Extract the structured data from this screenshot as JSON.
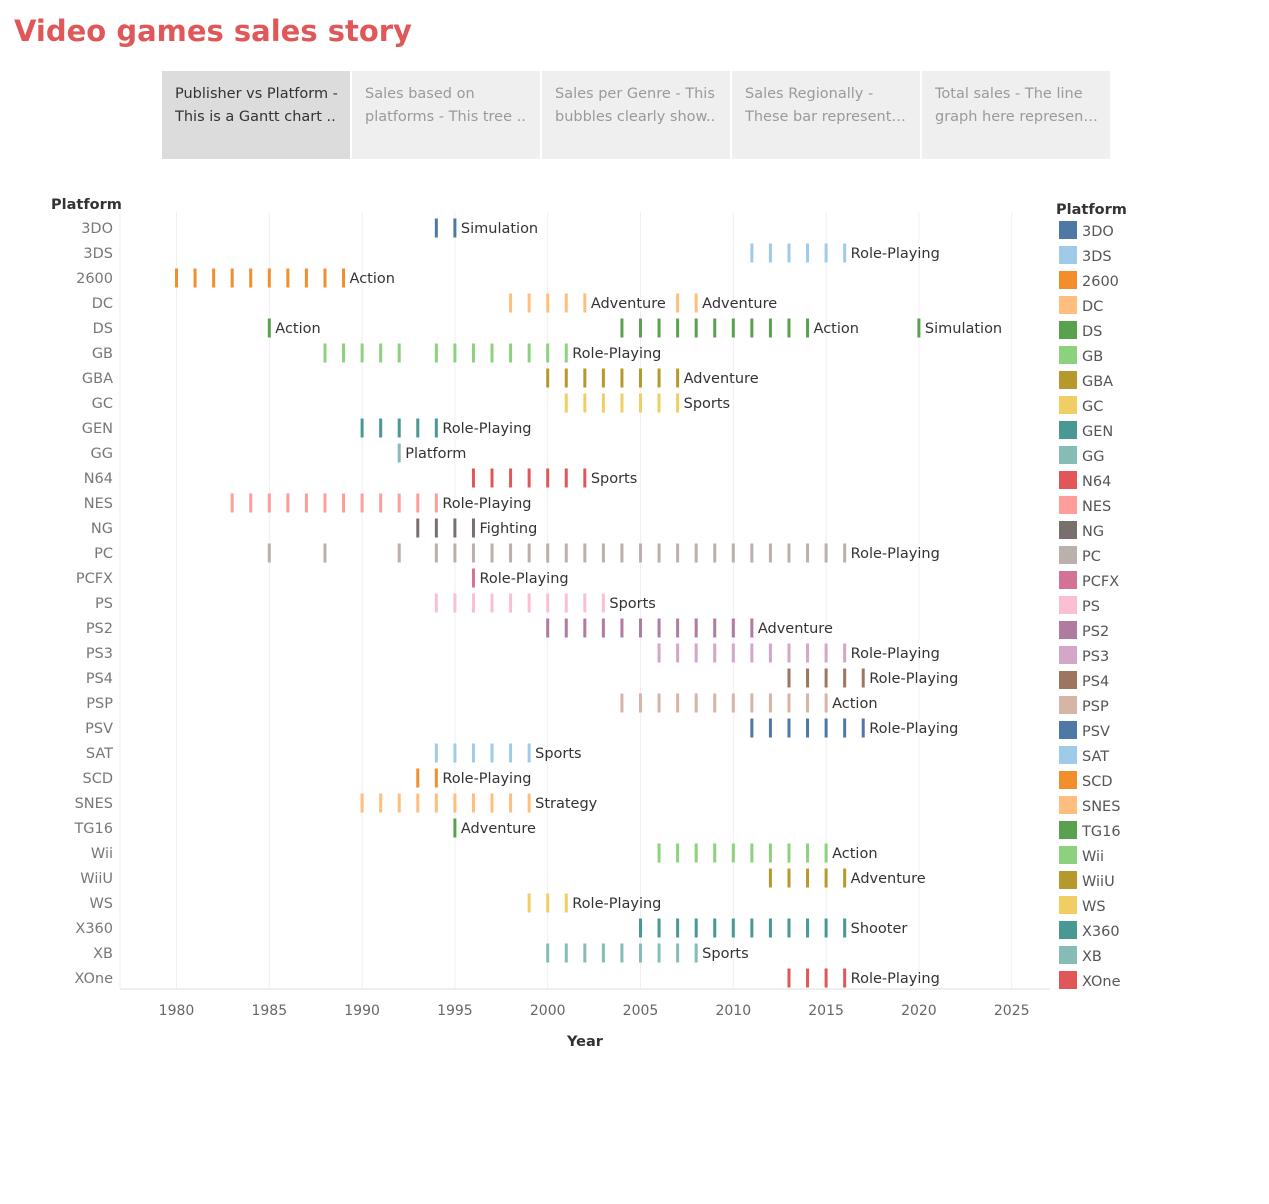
{
  "page": {
    "title": "Video games sales story"
  },
  "tabs": [
    {
      "line1": "Publisher vs Platform -",
      "line2": "This is a Gantt chart ..",
      "active": true
    },
    {
      "line1": "Sales based on",
      "line2": "platforms - This tree ..",
      "active": false
    },
    {
      "line1": "Sales per Genre - This",
      "line2": "bubbles clearly show..",
      "active": false
    },
    {
      "line1": "Sales Regionally -",
      "line2": "These bar represent t..",
      "active": false
    },
    {
      "line1": "Total sales - The line",
      "line2": "graph here represent..",
      "active": false
    }
  ],
  "chart_data": {
    "type": "gantt",
    "row_header": "Platform",
    "xlabel": "Year",
    "xlim": [
      1977,
      2027
    ],
    "xticks": [
      1980,
      1985,
      1990,
      1995,
      2000,
      2005,
      2010,
      2015,
      2020,
      2025
    ],
    "legend": {
      "title": "Platform",
      "position": "right"
    },
    "rows": [
      {
        "platform": "3DO",
        "color": "#4e79a7",
        "years": [
          1994,
          1995
        ],
        "labels": [
          {
            "year": 1995,
            "text": "Simulation"
          }
        ]
      },
      {
        "platform": "3DS",
        "color": "#a0cbe8",
        "years": [
          2011,
          2012,
          2013,
          2014,
          2015,
          2016
        ],
        "labels": [
          {
            "year": 2016,
            "text": "Role-Playing"
          }
        ]
      },
      {
        "platform": "2600",
        "color": "#f28e2b",
        "years": [
          1980,
          1981,
          1982,
          1983,
          1984,
          1985,
          1986,
          1987,
          1988,
          1989
        ],
        "labels": [
          {
            "year": 1989,
            "text": "Action"
          }
        ]
      },
      {
        "platform": "DC",
        "color": "#ffbe7d",
        "years": [
          1998,
          1999,
          2000,
          2001,
          2002,
          2007,
          2008
        ],
        "labels": [
          {
            "year": 2002,
            "text": "Adventure"
          },
          {
            "year": 2008,
            "text": "Adventure"
          }
        ]
      },
      {
        "platform": "DS",
        "color": "#59a14f",
        "years": [
          1985,
          2004,
          2005,
          2006,
          2007,
          2008,
          2009,
          2010,
          2011,
          2012,
          2013,
          2014,
          2020
        ],
        "labels": [
          {
            "year": 1985,
            "text": "Action"
          },
          {
            "year": 2014,
            "text": "Action"
          },
          {
            "year": 2020,
            "text": "Simulation"
          }
        ]
      },
      {
        "platform": "GB",
        "color": "#8cd17d",
        "years": [
          1988,
          1989,
          1990,
          1991,
          1992,
          1994,
          1995,
          1996,
          1997,
          1998,
          1999,
          2000,
          2001
        ],
        "labels": [
          {
            "year": 2001,
            "text": "Role-Playing"
          }
        ]
      },
      {
        "platform": "GBA",
        "color": "#b6992d",
        "years": [
          2000,
          2001,
          2002,
          2003,
          2004,
          2005,
          2006,
          2007
        ],
        "labels": [
          {
            "year": 2007,
            "text": "Adventure"
          }
        ]
      },
      {
        "platform": "GC",
        "color": "#f1ce63",
        "years": [
          2001,
          2002,
          2003,
          2004,
          2005,
          2006,
          2007
        ],
        "labels": [
          {
            "year": 2007,
            "text": "Sports"
          }
        ]
      },
      {
        "platform": "GEN",
        "color": "#499894",
        "years": [
          1990,
          1991,
          1992,
          1993,
          1994
        ],
        "labels": [
          {
            "year": 1994,
            "text": "Role-Playing"
          }
        ]
      },
      {
        "platform": "GG",
        "color": "#86bcb6",
        "years": [
          1992
        ],
        "labels": [
          {
            "year": 1992,
            "text": "Platform"
          }
        ]
      },
      {
        "platform": "N64",
        "color": "#e15759",
        "years": [
          1996,
          1997,
          1998,
          1999,
          2000,
          2001,
          2002
        ],
        "labels": [
          {
            "year": 2002,
            "text": "Sports"
          }
        ]
      },
      {
        "platform": "NES",
        "color": "#ff9d9a",
        "years": [
          1983,
          1984,
          1985,
          1986,
          1987,
          1988,
          1989,
          1990,
          1991,
          1992,
          1993,
          1994
        ],
        "labels": [
          {
            "year": 1994,
            "text": "Role-Playing"
          }
        ]
      },
      {
        "platform": "NG",
        "color": "#79706e",
        "years": [
          1993,
          1994,
          1995,
          1996
        ],
        "labels": [
          {
            "year": 1996,
            "text": "Fighting"
          }
        ]
      },
      {
        "platform": "PC",
        "color": "#bab0ac",
        "years": [
          1985,
          1988,
          1992,
          1994,
          1995,
          1996,
          1997,
          1998,
          1999,
          2000,
          2001,
          2002,
          2003,
          2004,
          2005,
          2006,
          2007,
          2008,
          2009,
          2010,
          2011,
          2012,
          2013,
          2014,
          2015,
          2016
        ],
        "labels": [
          {
            "year": 2016,
            "text": "Role-Playing"
          }
        ]
      },
      {
        "platform": "PCFX",
        "color": "#d37295",
        "years": [
          1996
        ],
        "labels": [
          {
            "year": 1996,
            "text": "Role-Playing"
          }
        ]
      },
      {
        "platform": "PS",
        "color": "#fabfd2",
        "years": [
          1994,
          1995,
          1996,
          1997,
          1998,
          1999,
          2000,
          2001,
          2002,
          2003
        ],
        "labels": [
          {
            "year": 2003,
            "text": "Sports"
          }
        ]
      },
      {
        "platform": "PS2",
        "color": "#b07aa1",
        "years": [
          2000,
          2001,
          2002,
          2003,
          2004,
          2005,
          2006,
          2007,
          2008,
          2009,
          2010,
          2011
        ],
        "labels": [
          {
            "year": 2011,
            "text": "Adventure"
          }
        ]
      },
      {
        "platform": "PS3",
        "color": "#d4a6c8",
        "years": [
          2006,
          2007,
          2008,
          2009,
          2010,
          2011,
          2012,
          2013,
          2014,
          2015,
          2016
        ],
        "labels": [
          {
            "year": 2016,
            "text": "Role-Playing"
          }
        ]
      },
      {
        "platform": "PS4",
        "color": "#9d7660",
        "years": [
          2013,
          2014,
          2015,
          2016,
          2017
        ],
        "labels": [
          {
            "year": 2017,
            "text": "Role-Playing"
          }
        ]
      },
      {
        "platform": "PSP",
        "color": "#d7b5a6",
        "years": [
          2004,
          2005,
          2006,
          2007,
          2008,
          2009,
          2010,
          2011,
          2012,
          2013,
          2014,
          2015
        ],
        "labels": [
          {
            "year": 2015,
            "text": "Action"
          }
        ]
      },
      {
        "platform": "PSV",
        "color": "#4e79a7",
        "years": [
          2011,
          2012,
          2013,
          2014,
          2015,
          2016,
          2017
        ],
        "labels": [
          {
            "year": 2017,
            "text": "Role-Playing"
          }
        ]
      },
      {
        "platform": "SAT",
        "color": "#a0cbe8",
        "years": [
          1994,
          1995,
          1996,
          1997,
          1998,
          1999
        ],
        "labels": [
          {
            "year": 1999,
            "text": "Sports"
          }
        ]
      },
      {
        "platform": "SCD",
        "color": "#f28e2b",
        "years": [
          1993,
          1994
        ],
        "labels": [
          {
            "year": 1994,
            "text": "Role-Playing"
          }
        ]
      },
      {
        "platform": "SNES",
        "color": "#ffbe7d",
        "years": [
          1990,
          1991,
          1992,
          1993,
          1994,
          1995,
          1996,
          1997,
          1998,
          1999
        ],
        "labels": [
          {
            "year": 1999,
            "text": "Strategy"
          }
        ]
      },
      {
        "platform": "TG16",
        "color": "#59a14f",
        "years": [
          1995
        ],
        "labels": [
          {
            "year": 1995,
            "text": "Adventure"
          }
        ]
      },
      {
        "platform": "Wii",
        "color": "#8cd17d",
        "years": [
          2006,
          2007,
          2008,
          2009,
          2010,
          2011,
          2012,
          2013,
          2014,
          2015
        ],
        "labels": [
          {
            "year": 2015,
            "text": "Action"
          }
        ]
      },
      {
        "platform": "WiiU",
        "color": "#b6992d",
        "years": [
          2012,
          2013,
          2014,
          2015,
          2016
        ],
        "labels": [
          {
            "year": 2016,
            "text": "Adventure"
          }
        ]
      },
      {
        "platform": "WS",
        "color": "#f1ce63",
        "years": [
          1999,
          2000,
          2001
        ],
        "labels": [
          {
            "year": 2001,
            "text": "Role-Playing"
          }
        ]
      },
      {
        "platform": "X360",
        "color": "#499894",
        "years": [
          2005,
          2006,
          2007,
          2008,
          2009,
          2010,
          2011,
          2012,
          2013,
          2014,
          2015,
          2016
        ],
        "labels": [
          {
            "year": 2016,
            "text": "Shooter"
          }
        ]
      },
      {
        "platform": "XB",
        "color": "#86bcb6",
        "years": [
          2000,
          2001,
          2002,
          2003,
          2004,
          2005,
          2006,
          2007,
          2008
        ],
        "labels": [
          {
            "year": 2008,
            "text": "Sports"
          }
        ]
      },
      {
        "platform": "XOne",
        "color": "#e15759",
        "years": [
          2013,
          2014,
          2015,
          2016
        ],
        "labels": [
          {
            "year": 2016,
            "text": "Role-Playing"
          }
        ]
      }
    ]
  }
}
